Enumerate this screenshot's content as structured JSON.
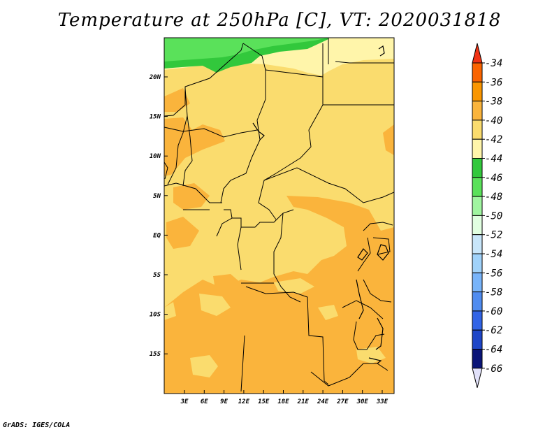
{
  "title": "Temperature at 250hPa [C], VT: 2020031818",
  "credit": "GrADS: IGES/COLA",
  "map": {
    "lat_labels": [
      "20N",
      "15N",
      "10N",
      "5N",
      "EQ",
      "5S",
      "10S",
      "15S"
    ],
    "lon_labels": [
      "3E",
      "6E",
      "9E",
      "12E",
      "15E",
      "18E",
      "21E",
      "24E",
      "27E",
      "30E",
      "33E"
    ]
  },
  "colorbar": {
    "levels": [
      "-34",
      "-36",
      "-38",
      "-40",
      "-42",
      "-44",
      "-46",
      "-48",
      "-50",
      "-52",
      "-54",
      "-56",
      "-58",
      "-60",
      "-62",
      "-64",
      "-66"
    ],
    "colors": {
      "top_triangle": "#f03214",
      "boxes": [
        "#fa6400",
        "#fa9600",
        "#fab43c",
        "#fadc6e",
        "#fff5aa",
        "#32c83c",
        "#5ae15a",
        "#a0f5a0",
        "#e1ffe1",
        "#c8e6fa",
        "#a0d2fa",
        "#78b4fa",
        "#508cf0",
        "#3264e6",
        "#1e46c8",
        "#0a1478"
      ],
      "bottom_triangle": "#e1e1fa"
    }
  },
  "colors": {
    "t40": "#fadc6e",
    "t38": "#fab43c",
    "t42": "#fff5aa",
    "t44": "#32c83c",
    "t46": "#5ae15a",
    "t48": "#a0f5a0"
  }
}
